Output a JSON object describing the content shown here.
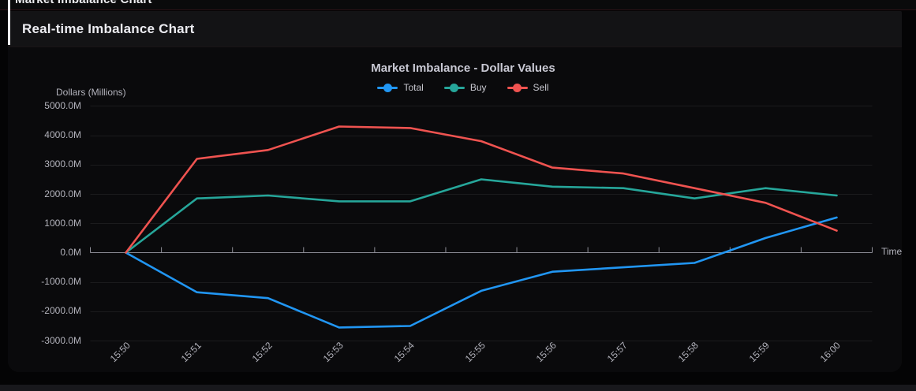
{
  "window": {
    "title": "Market Imbalance Chart"
  },
  "panel": {
    "title": "Real-time Imbalance Chart"
  },
  "chart_data": {
    "type": "line",
    "title": "Market Imbalance - Dollar Values",
    "xlabel": "Time",
    "ylabel": "Dollars (Millions)",
    "x": [
      "15:50",
      "15:51",
      "15:52",
      "15:53",
      "15:54",
      "15:55",
      "15:56",
      "15:57",
      "15:58",
      "15:59",
      "16:00"
    ],
    "y_ticks": [
      "5000.0M",
      "4000.0M",
      "3000.0M",
      "2000.0M",
      "1000.0M",
      "0.0M",
      "-1000.0M",
      "-2000.0M",
      "-3000.0M"
    ],
    "y_tick_values": [
      5000,
      4000,
      3000,
      2000,
      1000,
      0,
      -1000,
      -2000,
      -3000
    ],
    "ylim": [
      -3000,
      5000
    ],
    "grid": true,
    "legend_position": "top",
    "series": [
      {
        "name": "Total",
        "color": "#2196f3",
        "values": [
          0,
          -1350,
          -1550,
          -2550,
          -2500,
          -1300,
          -650,
          -500,
          -350,
          500,
          1200
        ]
      },
      {
        "name": "Buy",
        "color": "#26a69a",
        "values": [
          0,
          1850,
          1950,
          1750,
          1750,
          2500,
          2250,
          2200,
          1850,
          2200,
          1950
        ]
      },
      {
        "name": "Sell",
        "color": "#ef5350",
        "values": [
          0,
          3200,
          3500,
          4300,
          4250,
          3800,
          2900,
          2700,
          2200,
          1700,
          750
        ]
      }
    ],
    "colors": {
      "axis_line": "#8d8d96",
      "grid_line": "rgba(255,255,255,0.07)"
    }
  }
}
